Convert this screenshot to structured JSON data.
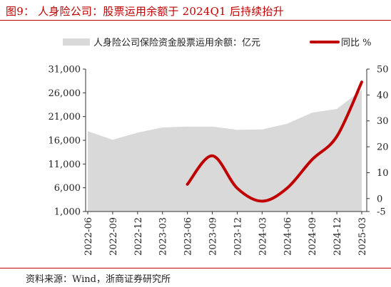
{
  "title": "图9： 人身险公司：股票运用余额于 2024Q1 后持续抬升",
  "source": "资料来源：Wind，浙商证券研究所",
  "colors": {
    "area": "#d9d9d9",
    "line": "#c00000",
    "title": "#c00000"
  },
  "chart_data": {
    "type": "area",
    "title": "",
    "categories": [
      "2022-06",
      "2022-09",
      "2022-12",
      "2023-03",
      "2023-06",
      "2023-09",
      "2023-12",
      "2024-03",
      "2024-06",
      "2024-09",
      "2024-12",
      "2025-03"
    ],
    "series": [
      {
        "name": "人身险公司保险资金股票运用余额：亿元",
        "type": "area",
        "axis": "left",
        "values": [
          17900,
          16100,
          17600,
          18700,
          18900,
          18900,
          18200,
          18300,
          19500,
          21800,
          22600,
          26600
        ]
      },
      {
        "name": "同比 %",
        "type": "line",
        "axis": "right",
        "values": [
          null,
          null,
          null,
          null,
          5.5,
          16.5,
          4,
          -1,
          4,
          15,
          24,
          45
        ]
      }
    ],
    "left_axis": {
      "min": 1000,
      "max": 31000,
      "ticks": [
        "1,000",
        "6,000",
        "11,000",
        "16,000",
        "21,000",
        "26,000",
        "31,000"
      ]
    },
    "right_axis": {
      "min": -5,
      "max": 50,
      "ticks": [
        "-5",
        "0",
        "10",
        "20",
        "30",
        "40",
        "50"
      ]
    },
    "legend": {
      "placement": "top"
    }
  }
}
